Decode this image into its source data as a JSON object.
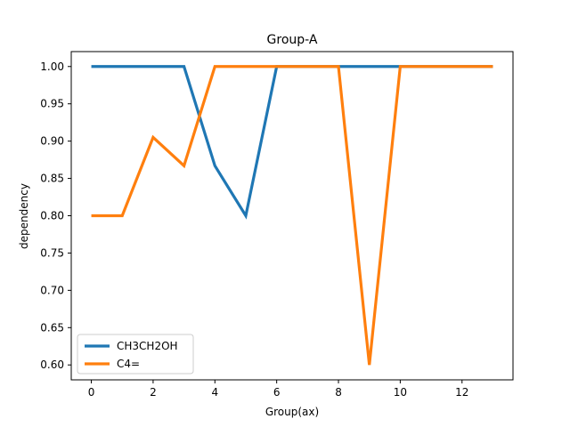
{
  "chart_data": {
    "type": "line",
    "title": "Group-A",
    "xlabel": "Group(ax)",
    "ylabel": "dependency",
    "xlim": [
      -0.65,
      13.65
    ],
    "ylim": [
      0.58,
      1.02
    ],
    "xticks": [
      0,
      2,
      4,
      6,
      8,
      10,
      12
    ],
    "yticks": [
      0.6,
      0.65,
      0.7,
      0.75,
      0.8,
      0.85,
      0.9,
      0.95,
      1.0
    ],
    "grid": false,
    "legend_position": "lower-left",
    "x": [
      0,
      1,
      2,
      3,
      4,
      5,
      6,
      7,
      8,
      9,
      10,
      11,
      12,
      13
    ],
    "series": [
      {
        "name": "CH3CH2OH",
        "color": "#1f77b4",
        "values": [
          1.0,
          1.0,
          1.0,
          1.0,
          0.867,
          0.8,
          1.0,
          1.0,
          1.0,
          1.0,
          1.0,
          1.0,
          1.0,
          1.0
        ]
      },
      {
        "name": "C4=",
        "color": "#ff7f0e",
        "values": [
          0.8,
          0.8,
          0.905,
          0.867,
          1.0,
          1.0,
          1.0,
          1.0,
          1.0,
          0.6,
          1.0,
          1.0,
          1.0,
          1.0
        ]
      }
    ]
  }
}
